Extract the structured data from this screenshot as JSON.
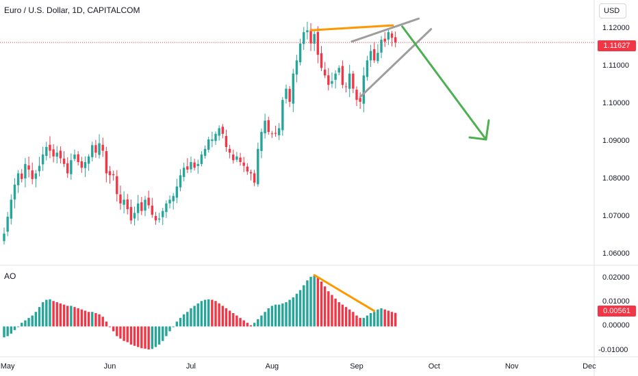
{
  "header": {
    "title": "Euro / U.S. Dollar, 1D, CAPITALCOM",
    "currency": "USD"
  },
  "indicator": {
    "label": "AO",
    "last_value_label": "0.00561"
  },
  "price_badge": "1.11627",
  "colors": {
    "up": "#26a69a",
    "down": "#f23645",
    "orange": "#ff9800",
    "grey": "#9e9e9e",
    "green_arrow": "#4caf50"
  },
  "chart_data": {
    "type": "candlestick",
    "price_axis": {
      "ylim": [
        1.058,
        1.125
      ],
      "ticks": [
        "1.12000",
        "1.11000",
        "1.10000",
        "1.09000",
        "1.08000",
        "1.07000",
        "1.06000"
      ],
      "tick_values": [
        1.12,
        1.11,
        1.1,
        1.09,
        1.08,
        1.07,
        1.06
      ]
    },
    "ao_axis": {
      "ylim": [
        -0.012,
        0.023
      ],
      "ticks": [
        "0.02000",
        "0.01000",
        "0.00000",
        "-0.01000"
      ],
      "tick_values": [
        0.02,
        0.01,
        0.0,
        -0.01
      ]
    },
    "x_axis": {
      "labels": [
        "May",
        "Jun",
        "Jul",
        "Aug",
        "Sep",
        "Oct",
        "Nov",
        "Dec"
      ],
      "label_bar_index": [
        1,
        30,
        53,
        76,
        100,
        122,
        144,
        166
      ]
    },
    "current_price": 1.11627,
    "close": [
      1.0655,
      1.07,
      1.0745,
      1.0785,
      1.0815,
      1.08,
      1.084,
      1.0825,
      1.08,
      1.0815,
      1.0835,
      1.0865,
      1.0885,
      1.0875,
      1.086,
      1.087,
      1.0855,
      1.084,
      1.0815,
      1.085,
      1.0865,
      1.0845,
      1.083,
      1.0845,
      1.086,
      1.089,
      1.087,
      1.0895,
      1.0875,
      1.0815,
      1.081,
      1.081,
      1.076,
      1.0735,
      1.0745,
      1.072,
      1.069,
      1.071,
      1.0735,
      1.0715,
      1.0745,
      1.073,
      1.0705,
      1.069,
      1.0695,
      1.0715,
      1.0735,
      1.0745,
      1.0755,
      1.078,
      1.081,
      1.083,
      1.0825,
      1.0845,
      1.083,
      1.084,
      1.0865,
      1.088,
      1.0905,
      1.0905,
      1.092,
      1.0935,
      1.092,
      1.0885,
      1.087,
      1.085,
      1.086,
      1.0845,
      1.0835,
      1.082,
      1.0815,
      1.079,
      1.088,
      1.0925,
      1.0955,
      1.0925,
      1.092,
      1.092,
      1.0935,
      1.101,
      1.104,
      1.1005,
      1.108,
      1.1115,
      1.116,
      1.119,
      1.1195,
      1.116,
      1.1185,
      1.113,
      1.1095,
      1.1075,
      1.105,
      1.106,
      1.108,
      1.1095,
      1.105,
      1.1045,
      1.108,
      1.104,
      1.101,
      1.1005,
      1.1075,
      1.1115,
      1.114,
      1.1115,
      1.1135,
      1.117,
      1.1165,
      1.119,
      1.1175,
      1.1163
    ],
    "ao": [
      -0.0045,
      -0.004,
      -0.003,
      -0.0015,
      0.0,
      0.0015,
      0.0025,
      0.0035,
      0.0045,
      0.006,
      0.008,
      0.01,
      0.011,
      0.0112,
      0.0105,
      0.01,
      0.0095,
      0.009,
      0.0085,
      0.0085,
      0.008,
      0.0075,
      0.007,
      0.0065,
      0.006,
      0.006,
      0.0055,
      0.005,
      0.004,
      0.002,
      0.0,
      -0.002,
      -0.004,
      -0.005,
      -0.006,
      -0.0065,
      -0.0075,
      -0.008,
      -0.0085,
      -0.009,
      -0.0092,
      -0.0095,
      -0.0093,
      -0.0085,
      -0.0075,
      -0.006,
      -0.004,
      -0.002,
      0.0,
      0.002,
      0.0035,
      0.005,
      0.006,
      0.0075,
      0.0085,
      0.0095,
      0.0105,
      0.011,
      0.0112,
      0.011,
      0.0105,
      0.0095,
      0.0085,
      0.0075,
      0.0065,
      0.0055,
      0.0045,
      0.0035,
      0.0025,
      0.0015,
      0.0005,
      0.0015,
      0.003,
      0.0045,
      0.006,
      0.0075,
      0.0085,
      0.009,
      0.009,
      0.0095,
      0.01,
      0.011,
      0.012,
      0.0135,
      0.015,
      0.017,
      0.019,
      0.0205,
      0.021,
      0.0205,
      0.0185,
      0.0165,
      0.0145,
      0.013,
      0.0115,
      0.01,
      0.009,
      0.008,
      0.007,
      0.006,
      0.0045,
      0.0035,
      0.0035,
      0.0045,
      0.0055,
      0.006,
      0.007,
      0.0075,
      0.007,
      0.0065,
      0.006,
      0.0056
    ]
  }
}
